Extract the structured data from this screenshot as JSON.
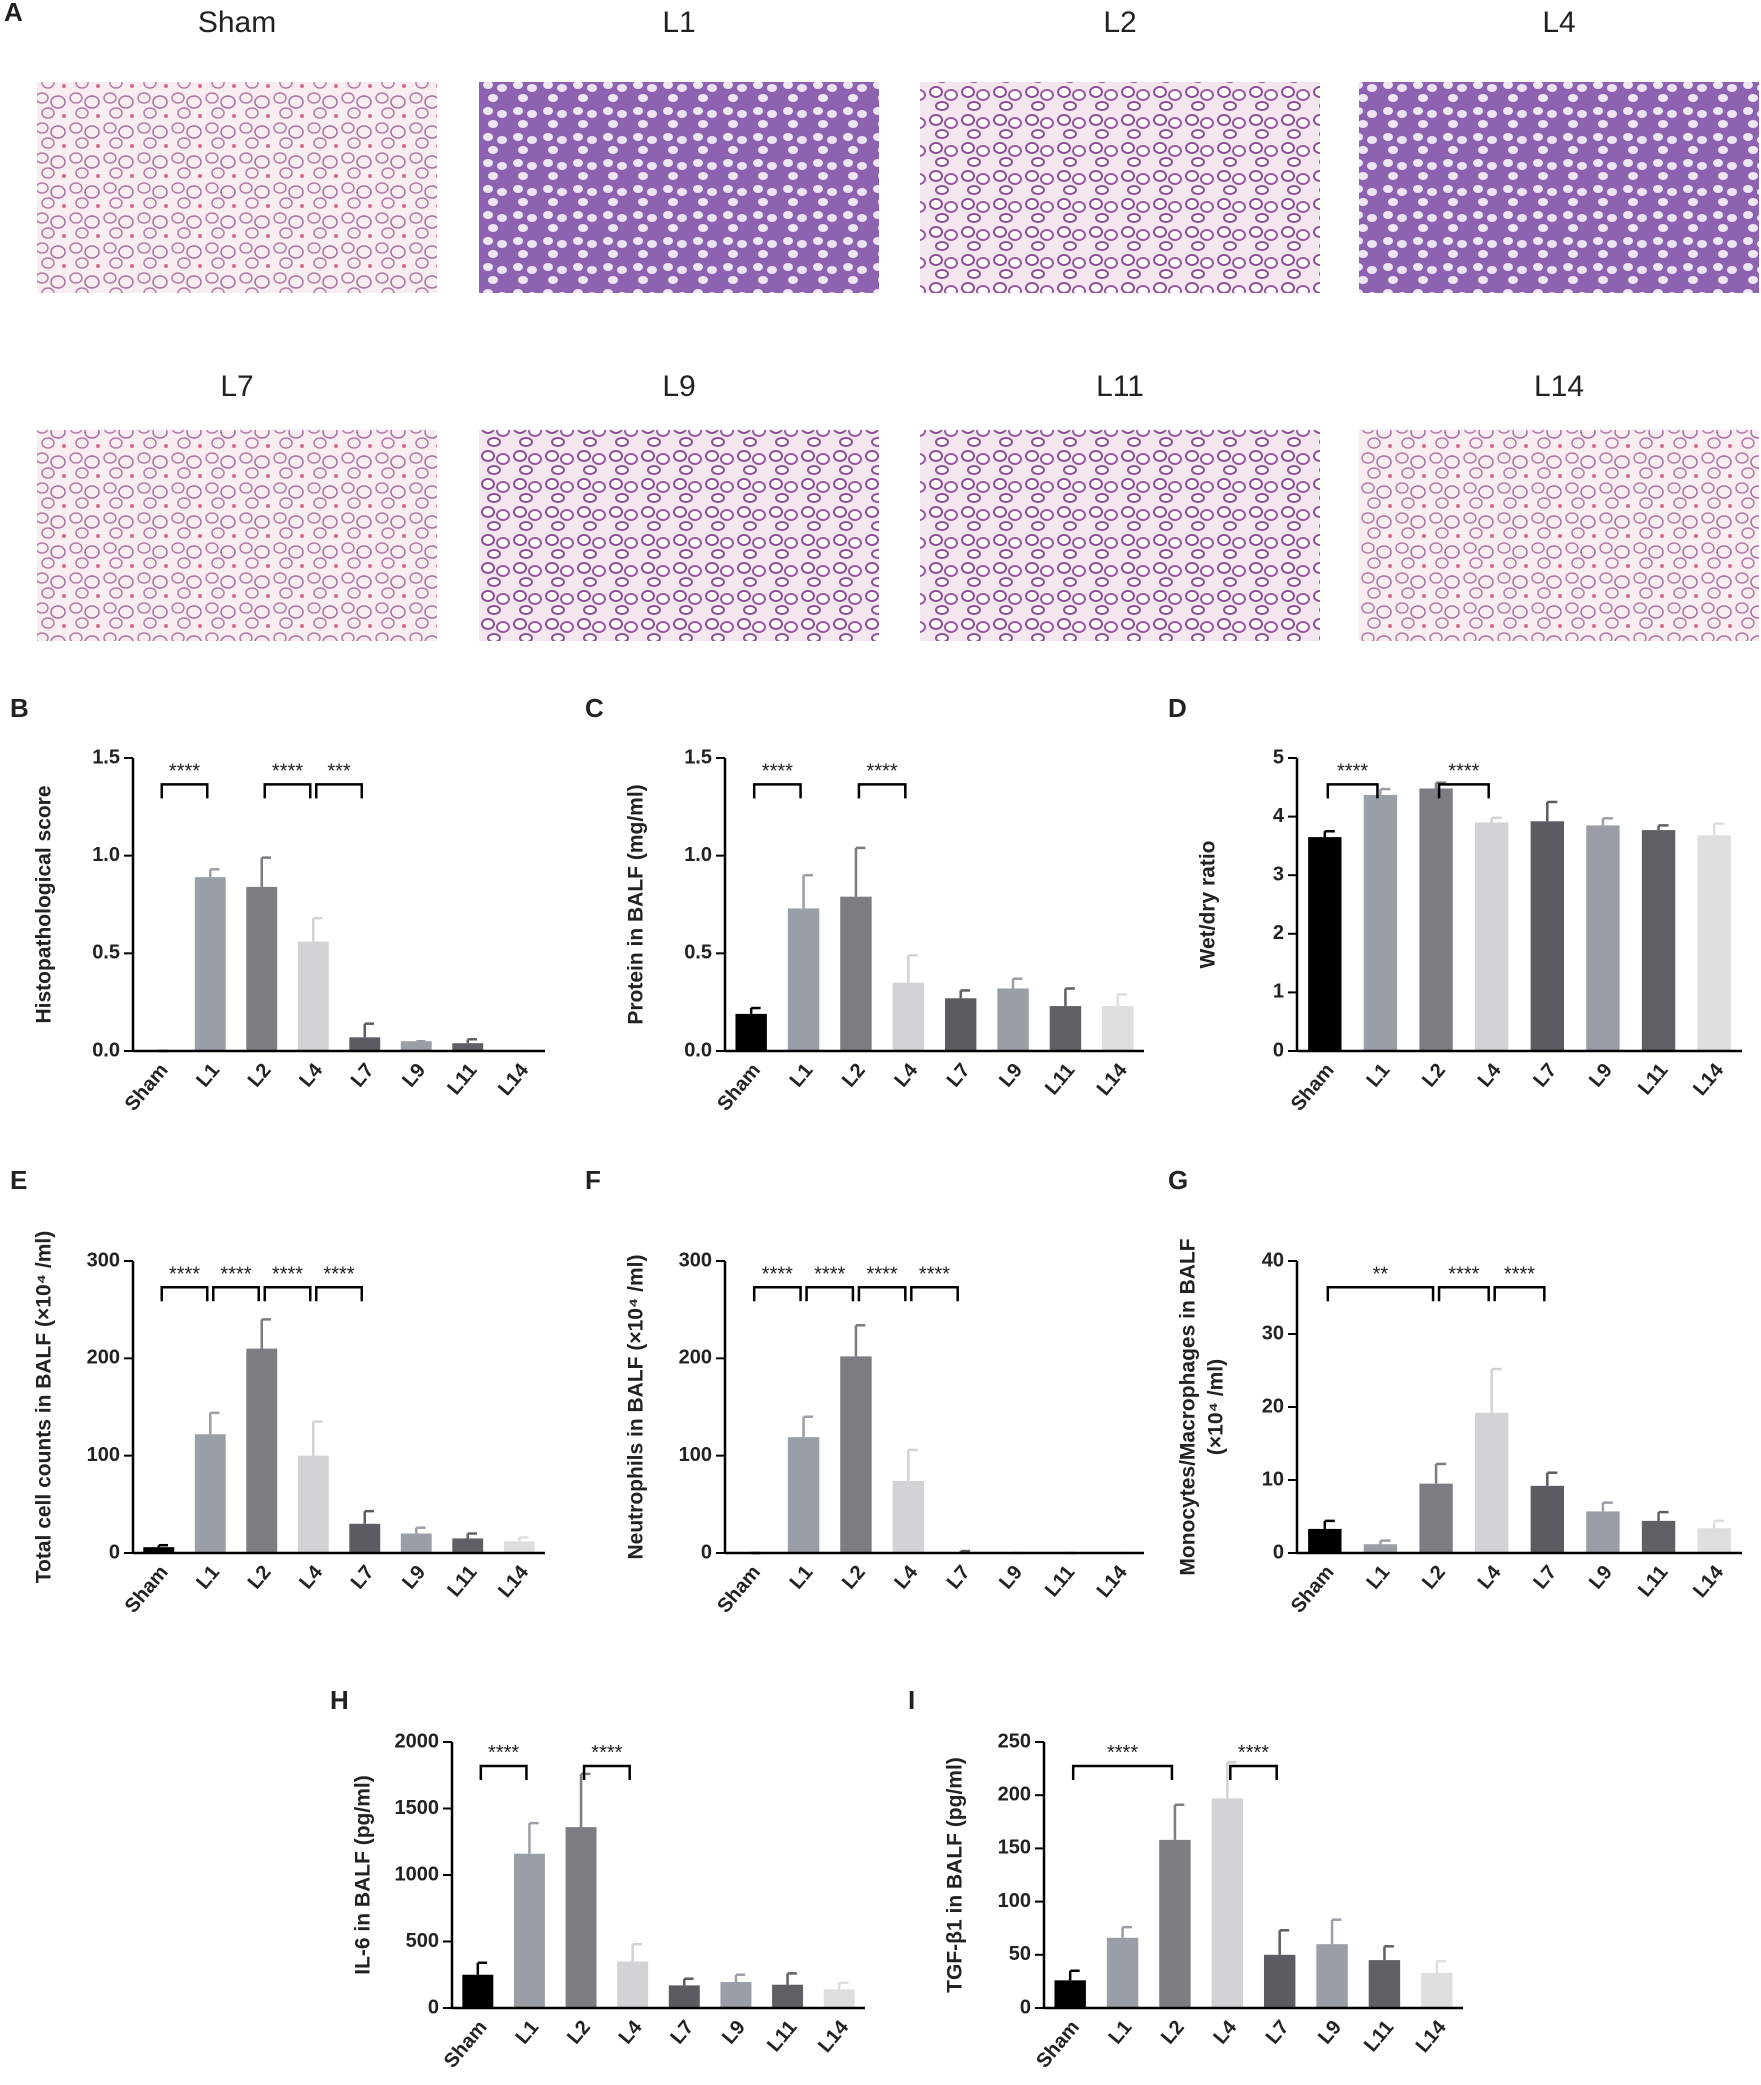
{
  "histology": {
    "panel_label": "A",
    "images": [
      "Sham",
      "L1",
      "L2",
      "L4",
      "L7",
      "L9",
      "L11",
      "L14"
    ]
  },
  "chart_data": [
    {
      "type": "bar",
      "panel_label": "B",
      "ylabel": [
        "Histopathological score"
      ],
      "categories": [
        "Sham",
        "L1",
        "L2",
        "L4",
        "L7",
        "L9",
        "L11",
        "L14"
      ],
      "values": [
        0,
        0.89,
        0.84,
        0.56,
        0.07,
        0.05,
        0.04,
        0
      ],
      "errors": [
        0,
        0.04,
        0.15,
        0.12,
        0.07,
        0,
        0.02,
        0
      ],
      "colors": [
        "#000000",
        "#9a9ea6",
        "#7c7d82",
        "#d3d3d5",
        "#5b5c61",
        "#9a9ea6",
        "#5f6065",
        "#dedede"
      ],
      "ylim": [
        0,
        1.5
      ],
      "yticks": [
        {
          "value": 0,
          "label": "0.0"
        },
        0.5,
        {
          "value": 1,
          "label": "1.0"
        },
        1.5
      ],
      "brackets": [
        {
          "from": "Sham",
          "to": "L1",
          "label": "****"
        },
        {
          "from": "L2",
          "to": "L4",
          "label": "****"
        },
        {
          "from": "L4",
          "to": "L7",
          "label": "***"
        }
      ]
    },
    {
      "type": "bar",
      "panel_label": "C",
      "ylabel": [
        "Protein in BALF (mg/ml)"
      ],
      "categories": [
        "Sham",
        "L1",
        "L2",
        "L4",
        "L7",
        "L9",
        "L11",
        "L14"
      ],
      "values": [
        0.19,
        0.73,
        0.79,
        0.35,
        0.27,
        0.32,
        0.23,
        0.23
      ],
      "errors": [
        0.03,
        0.17,
        0.25,
        0.14,
        0.04,
        0.05,
        0.09,
        0.06
      ],
      "colors": [
        "#000000",
        "#9a9ea6",
        "#7c7d82",
        "#d3d3d5",
        "#5b5c61",
        "#9a9ea6",
        "#5f6065",
        "#dedede"
      ],
      "ylim": [
        0,
        1.5
      ],
      "yticks": [
        {
          "value": 0,
          "label": "0.0"
        },
        0.5,
        {
          "value": 1,
          "label": "1.0"
        },
        1.5
      ],
      "brackets": [
        {
          "from": "Sham",
          "to": "L1",
          "label": "****"
        },
        {
          "from": "L2",
          "to": "L4",
          "label": "****"
        }
      ]
    },
    {
      "type": "bar",
      "panel_label": "D",
      "ylabel": [
        "Wet/dry ratio"
      ],
      "categories": [
        "Sham",
        "L1",
        "L2",
        "L4",
        "L7",
        "L9",
        "L11",
        "L14"
      ],
      "values": [
        3.65,
        4.37,
        4.48,
        3.9,
        3.92,
        3.85,
        3.77,
        3.68
      ],
      "errors": [
        0.1,
        0.1,
        0.1,
        0.08,
        0.33,
        0.12,
        0.08,
        0.2
      ],
      "colors": [
        "#000000",
        "#9a9ea6",
        "#7c7d82",
        "#d3d3d5",
        "#5b5c61",
        "#9a9ea6",
        "#5f6065",
        "#dedede"
      ],
      "ylim": [
        0,
        5
      ],
      "yticks": [
        0,
        1,
        2,
        3,
        4,
        5
      ],
      "brackets": [
        {
          "from": "Sham",
          "to": "L1",
          "label": "****"
        },
        {
          "from": "L2",
          "to": "L4",
          "label": "****"
        }
      ]
    },
    {
      "type": "bar",
      "panel_label": "E",
      "ylabel": [
        "Total cell counts in BALF (×10⁴ /ml)"
      ],
      "categories": [
        "Sham",
        "L1",
        "L2",
        "L4",
        "L7",
        "L9",
        "L11",
        "L14"
      ],
      "values": [
        6,
        122,
        210,
        100,
        30,
        20,
        15,
        12
      ],
      "errors": [
        2,
        22,
        30,
        35,
        13,
        6,
        5,
        4
      ],
      "colors": [
        "#000000",
        "#9a9ea6",
        "#7c7d82",
        "#d3d3d5",
        "#5b5c61",
        "#9a9ea6",
        "#5f6065",
        "#dedede"
      ],
      "ylim": [
        0,
        300
      ],
      "yticks": [
        0,
        100,
        200,
        300
      ],
      "brackets": [
        {
          "from": "Sham",
          "to": "L1",
          "label": "****"
        },
        {
          "from": "L1",
          "to": "L2",
          "label": "****"
        },
        {
          "from": "L2",
          "to": "L4",
          "label": "****"
        },
        {
          "from": "L4",
          "to": "L7",
          "label": "****"
        }
      ]
    },
    {
      "type": "bar",
      "panel_label": "F",
      "ylabel": [
        "Neutrophils in BALF (×10⁴ /ml)"
      ],
      "categories": [
        "Sham",
        "L1",
        "L2",
        "L4",
        "L7",
        "L9",
        "L11",
        "L14"
      ],
      "values": [
        0,
        119,
        202,
        74,
        1,
        0,
        0,
        0
      ],
      "errors": [
        0,
        21,
        32,
        32,
        1,
        0,
        0,
        0
      ],
      "colors": [
        "#000000",
        "#9a9ea6",
        "#7c7d82",
        "#d3d3d5",
        "#5b5c61",
        "#9a9ea6",
        "#5f6065",
        "#dedede"
      ],
      "ylim": [
        0,
        300
      ],
      "yticks": [
        0,
        100,
        200,
        300
      ],
      "brackets": [
        {
          "from": "Sham",
          "to": "L1",
          "label": "****"
        },
        {
          "from": "L1",
          "to": "L2",
          "label": "****"
        },
        {
          "from": "L2",
          "to": "L4",
          "label": "****"
        },
        {
          "from": "L4",
          "to": "L7",
          "label": "****"
        }
      ]
    },
    {
      "type": "bar",
      "panel_label": "G",
      "ylabel": [
        "Monocytes/Macrophages in BALF",
        "(×10⁴ /ml)"
      ],
      "categories": [
        "Sham",
        "L1",
        "L2",
        "L4",
        "L7",
        "L9",
        "L11",
        "L14"
      ],
      "values": [
        3.3,
        1.2,
        9.5,
        19.2,
        9.2,
        5.7,
        4.4,
        3.4
      ],
      "errors": [
        1.1,
        0.5,
        2.7,
        6,
        1.8,
        1.2,
        1.2,
        1
      ],
      "colors": [
        "#000000",
        "#9a9ea6",
        "#7c7d82",
        "#d3d3d5",
        "#5b5c61",
        "#9a9ea6",
        "#5f6065",
        "#dedede"
      ],
      "ylim": [
        0,
        40
      ],
      "yticks": [
        0,
        10,
        20,
        30,
        40
      ],
      "brackets": [
        {
          "from": "Sham",
          "to": "L2",
          "label": "**"
        },
        {
          "from": "L2",
          "to": "L4",
          "label": "****"
        },
        {
          "from": "L4",
          "to": "L7",
          "label": "****"
        }
      ]
    },
    {
      "type": "bar",
      "panel_label": "H",
      "ylabel": [
        "IL-6 in BALF (pg/ml)"
      ],
      "categories": [
        "Sham",
        "L1",
        "L2",
        "L4",
        "L7",
        "L9",
        "L11",
        "L14"
      ],
      "values": [
        250,
        1160,
        1360,
        350,
        170,
        195,
        175,
        140
      ],
      "errors": [
        90,
        230,
        400,
        130,
        50,
        55,
        85,
        50
      ],
      "colors": [
        "#000000",
        "#9a9ea6",
        "#7c7d82",
        "#d3d3d5",
        "#5b5c61",
        "#9a9ea6",
        "#5f6065",
        "#dedede"
      ],
      "ylim": [
        0,
        2000
      ],
      "yticks": [
        0,
        500,
        1000,
        1500,
        2000
      ],
      "brackets": [
        {
          "from": "Sham",
          "to": "L1",
          "label": "****"
        },
        {
          "from": "L2",
          "to": "L4",
          "label": "****"
        }
      ]
    },
    {
      "type": "bar",
      "panel_label": "I",
      "ylabel": [
        "TGF-β1 in BALF (pg/ml)"
      ],
      "categories": [
        "Sham",
        "L1",
        "L2",
        "L4",
        "L7",
        "L9",
        "L11",
        "L14"
      ],
      "values": [
        26,
        66,
        158,
        197,
        50,
        60,
        45,
        33
      ],
      "errors": [
        9,
        10,
        33,
        34,
        23,
        23,
        13,
        11
      ],
      "colors": [
        "#000000",
        "#9a9ea6",
        "#7c7d82",
        "#d3d3d5",
        "#5b5c61",
        "#9a9ea6",
        "#5f6065",
        "#dedede"
      ],
      "ylim": [
        0,
        250
      ],
      "yticks": [
        0,
        50,
        100,
        150,
        200,
        250
      ],
      "brackets": [
        {
          "from": "Sham",
          "to": "L2",
          "label": "****"
        },
        {
          "from": "L4",
          "to": "L7",
          "label": "****"
        }
      ]
    }
  ]
}
